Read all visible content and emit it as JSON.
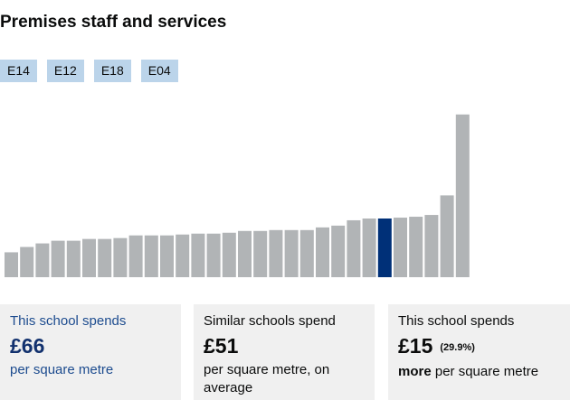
{
  "title": "Premises staff and services",
  "tags": [
    "E14",
    "E12",
    "E18",
    "E04"
  ],
  "chart_data": {
    "type": "bar",
    "values": [
      28,
      34,
      38,
      41,
      41,
      43,
      43,
      44,
      47,
      47,
      47,
      48,
      49,
      49,
      50,
      52,
      52,
      53,
      53,
      53,
      56,
      58,
      64,
      66,
      66,
      67,
      68,
      70,
      92,
      183
    ],
    "highlight_index": 24,
    "colors": {
      "bar": "#b1b4b6",
      "highlight": "#003078"
    },
    "ylim": [
      0,
      185
    ],
    "grid": false
  },
  "cards": [
    {
      "label": "This school spends",
      "value": "£66",
      "sub": "per square metre"
    },
    {
      "label": "Similar schools spend",
      "value": "£51",
      "sub": "per square metre, on average"
    },
    {
      "label": "This school spends",
      "value": "£15",
      "pct": "(29.9%)",
      "sub_bold": "more",
      "sub": " per square metre"
    }
  ]
}
